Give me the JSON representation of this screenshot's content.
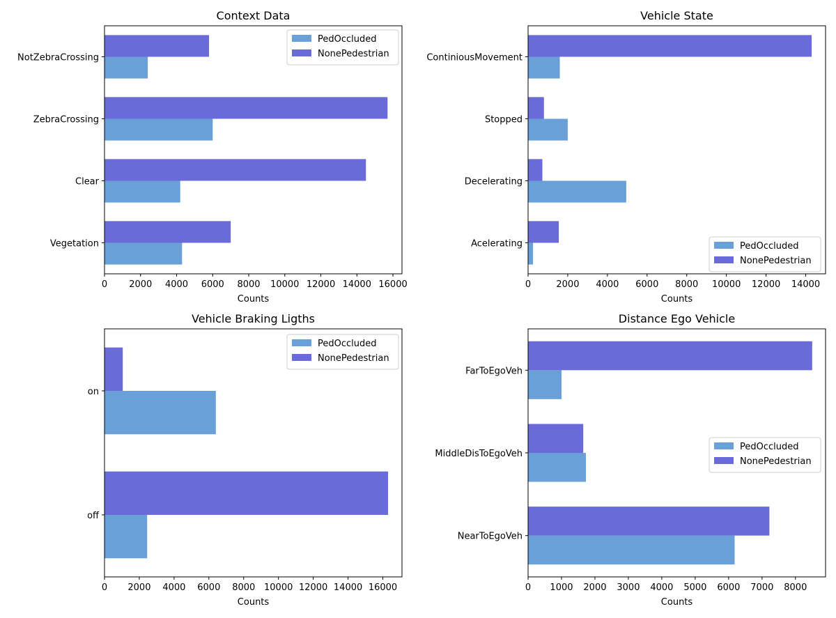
{
  "colors": {
    "ped_occluded": "#6aa0d8",
    "none_pedestrian": "#6a6ad8"
  },
  "chart_data": [
    {
      "type": "bar",
      "orientation": "horizontal",
      "title": "Context Data",
      "xlabel": "Counts",
      "ylabel": "",
      "categories": [
        "Vegetation",
        "Clear",
        "ZebraCrossing",
        "NotZebraCrossing"
      ],
      "series": [
        {
          "name": "PedOccluded",
          "values": [
            4300,
            4200,
            6000,
            2400
          ]
        },
        {
          "name": "NonePedestrian",
          "values": [
            7000,
            14500,
            15700,
            5800
          ]
        }
      ],
      "xlim": [
        0,
        16500
      ],
      "xticks": [
        0,
        2000,
        4000,
        6000,
        8000,
        10000,
        12000,
        14000,
        16000
      ],
      "legend_position": "top-right"
    },
    {
      "type": "bar",
      "orientation": "horizontal",
      "title": "Vehicle State",
      "xlabel": "Counts",
      "ylabel": "",
      "categories": [
        "Acelerating",
        "Decelerating",
        "Stopped",
        "ContiniousMovement"
      ],
      "series": [
        {
          "name": "PedOccluded",
          "values": [
            250,
            4950,
            2000,
            1600
          ]
        },
        {
          "name": "NonePedestrian",
          "values": [
            1550,
            720,
            800,
            14300
          ]
        }
      ],
      "xlim": [
        0,
        15000
      ],
      "xticks": [
        0,
        2000,
        4000,
        6000,
        8000,
        10000,
        12000,
        14000
      ],
      "legend_position": "bottom-right"
    },
    {
      "type": "bar",
      "orientation": "horizontal",
      "title": "Vehicle Braking Ligths",
      "xlabel": "Counts",
      "ylabel": "",
      "categories": [
        "off",
        "on"
      ],
      "series": [
        {
          "name": "PedOccluded",
          "values": [
            2450,
            6400
          ]
        },
        {
          "name": "NonePedestrian",
          "values": [
            16300,
            1050
          ]
        }
      ],
      "xlim": [
        0,
        17100
      ],
      "xticks": [
        0,
        2000,
        4000,
        6000,
        8000,
        10000,
        12000,
        14000,
        16000
      ],
      "legend_position": "top-right"
    },
    {
      "type": "bar",
      "orientation": "horizontal",
      "title": "Distance Ego Vehicle",
      "xlabel": "Counts",
      "ylabel": "",
      "categories": [
        "NearToEgoVeh",
        "MiddleDisToEgoVeh",
        "FarToEgoVeh"
      ],
      "series": [
        {
          "name": "PedOccluded",
          "values": [
            6180,
            1730,
            1000
          ]
        },
        {
          "name": "NonePedestrian",
          "values": [
            7220,
            1650,
            8500
          ]
        }
      ],
      "xlim": [
        0,
        8900
      ],
      "xticks": [
        0,
        1000,
        2000,
        3000,
        4000,
        5000,
        6000,
        7000,
        8000
      ],
      "legend_position": "center-right"
    }
  ]
}
